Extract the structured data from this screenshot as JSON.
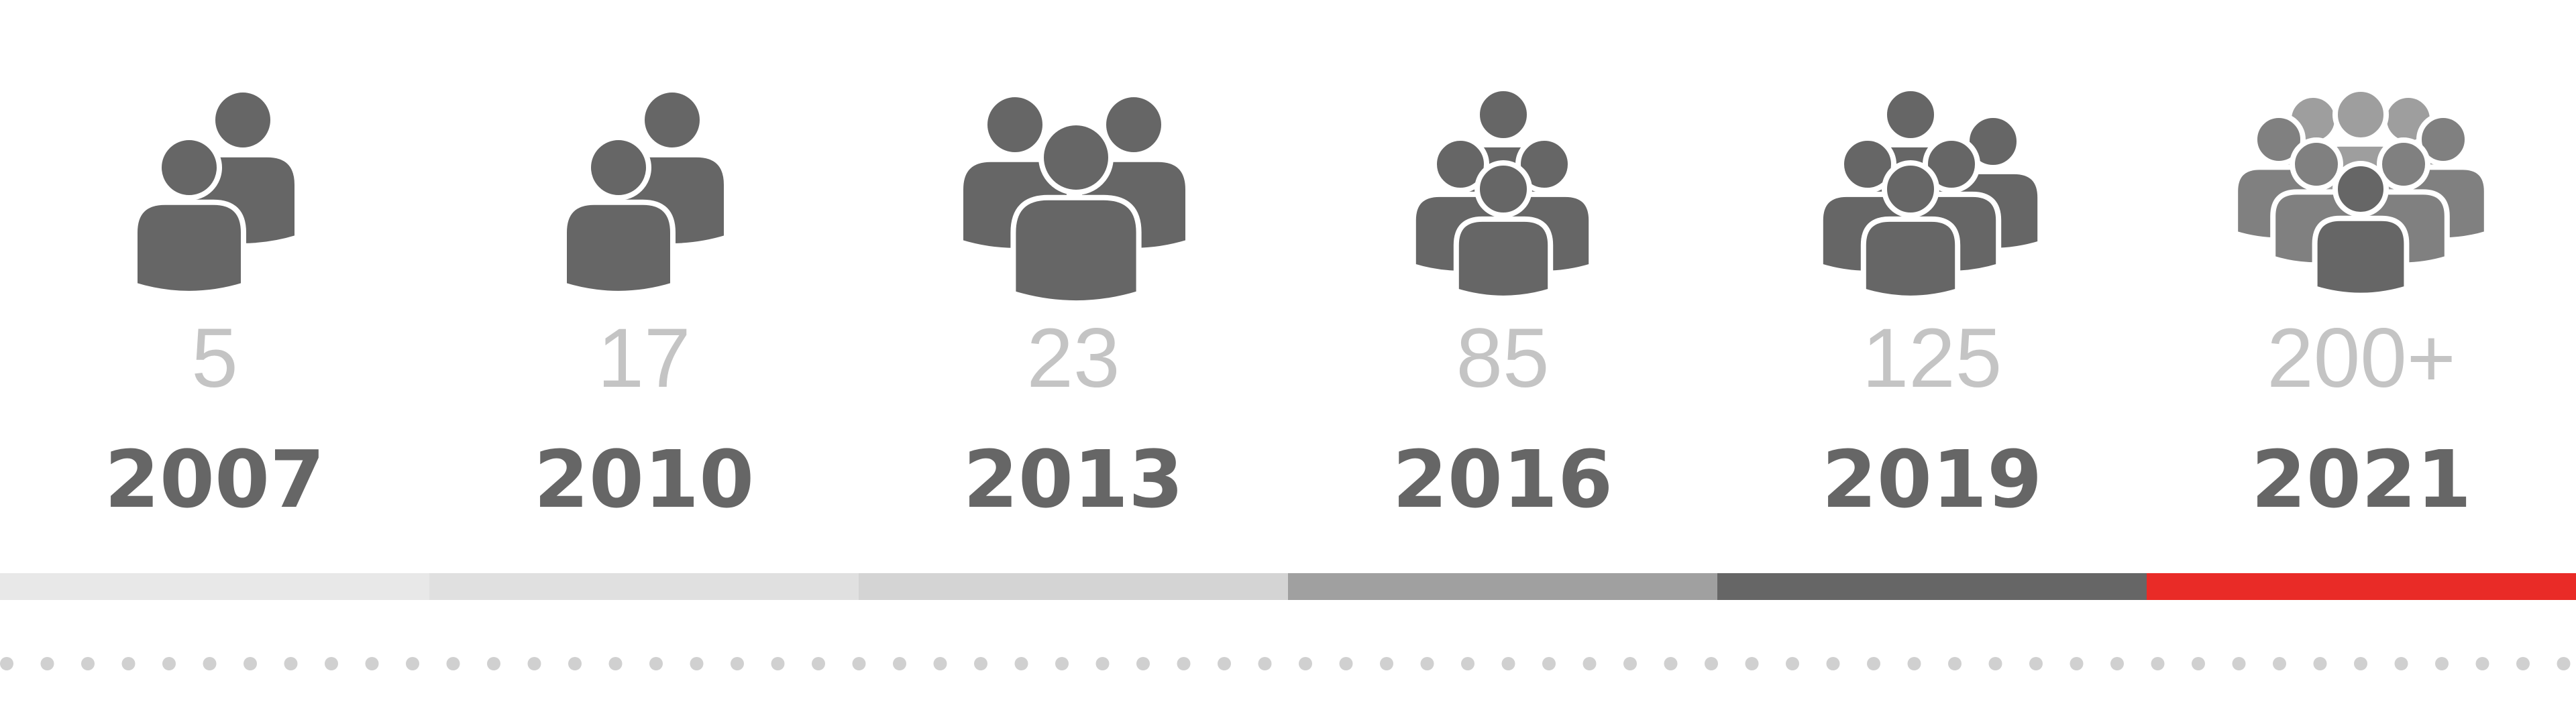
{
  "colors": {
    "text_count": "#c4c4c4",
    "text_year": "#666666",
    "dots": "#d0d0d0",
    "accent": "#e92b27"
  },
  "columns": [
    {
      "count": "5",
      "year": "2007",
      "bar_color": "#e8e8e8",
      "icon": "two-people-icon"
    },
    {
      "count": "17",
      "year": "2010",
      "bar_color": "#e0e0e0",
      "icon": "two-people-icon"
    },
    {
      "count": "23",
      "year": "2013",
      "bar_color": "#d4d4d4",
      "icon": "three-people-icon"
    },
    {
      "count": "85",
      "year": "2016",
      "bar_color": "#a0a0a0",
      "icon": "group-icon"
    },
    {
      "count": "125",
      "year": "2019",
      "bar_color": "#666666",
      "icon": "group-icon"
    },
    {
      "count": "200+",
      "year": "2021",
      "bar_color": "#e92b27",
      "icon": "crowd-icon"
    }
  ]
}
